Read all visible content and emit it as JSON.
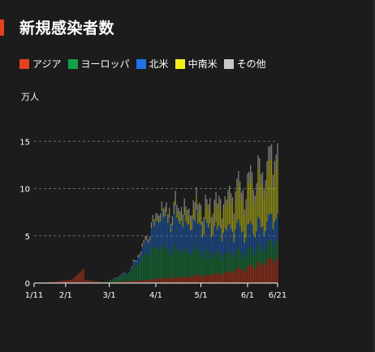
{
  "title": "新規感染者数",
  "unit": "万人",
  "colors": {
    "background": "#1c1c1c",
    "accent": "#e8401c"
  },
  "legend": [
    {
      "label": "アジア",
      "color": "#e8401c"
    },
    {
      "label": "ヨーロッパ",
      "color": "#12a146"
    },
    {
      "label": "北米",
      "color": "#1e73e8"
    },
    {
      "label": "中南米",
      "color": "#f2ee1a"
    },
    {
      "label": "その他",
      "color": "#c8c8c8"
    }
  ],
  "chart_data": {
    "type": "bar",
    "stacked": true,
    "x_ticks": [
      "1/11",
      "2/1",
      "3/1",
      "4/1",
      "5/1",
      "6/1",
      "6/21"
    ],
    "y_ticks": [
      "0",
      "5",
      "10",
      "15"
    ],
    "ylim": [
      0,
      18.5
    ],
    "grid": "dashed",
    "ylabel": "万人",
    "series_order": [
      "アジア",
      "ヨーロッパ",
      "北米",
      "中南米",
      "その他"
    ],
    "anchors": [
      {
        "date": "1/11",
        "values": [
          0,
          0,
          0,
          0,
          0
        ]
      },
      {
        "date": "1/25",
        "values": [
          0.15,
          0,
          0,
          0,
          0
        ]
      },
      {
        "date": "2/5",
        "values": [
          0.35,
          0,
          0,
          0,
          0
        ]
      },
      {
        "date": "2/13",
        "values": [
          1.5,
          0,
          0,
          0,
          0
        ]
      },
      {
        "date": "2/14",
        "values": [
          0.35,
          0,
          0,
          0,
          0
        ]
      },
      {
        "date": "2/25",
        "values": [
          0.1,
          0,
          0,
          0,
          0
        ]
      },
      {
        "date": "3/1",
        "values": [
          0.1,
          0.1,
          0,
          0,
          0
        ]
      },
      {
        "date": "3/15",
        "values": [
          0.2,
          1.0,
          0.2,
          0,
          0.05
        ]
      },
      {
        "date": "3/25",
        "values": [
          0.3,
          2.8,
          1.3,
          0.1,
          0.3
        ]
      },
      {
        "date": "4/5",
        "values": [
          0.5,
          3.3,
          3.3,
          0.3,
          0.6
        ]
      },
      {
        "date": "4/15",
        "values": [
          0.6,
          2.9,
          3.2,
          0.6,
          0.7
        ]
      },
      {
        "date": "5/1",
        "values": [
          0.8,
          2.5,
          2.8,
          1.3,
          0.8
        ]
      },
      {
        "date": "5/15",
        "values": [
          1.0,
          1.9,
          2.6,
          2.2,
          0.8
        ]
      },
      {
        "date": "6/1",
        "values": [
          1.6,
          1.6,
          2.3,
          3.8,
          1.0
        ]
      },
      {
        "date": "6/15",
        "values": [
          2.3,
          1.7,
          2.4,
          5.0,
          1.3
        ]
      },
      {
        "date": "6/21",
        "values": [
          2.6,
          1.8,
          2.6,
          5.6,
          1.5
        ]
      }
    ]
  }
}
